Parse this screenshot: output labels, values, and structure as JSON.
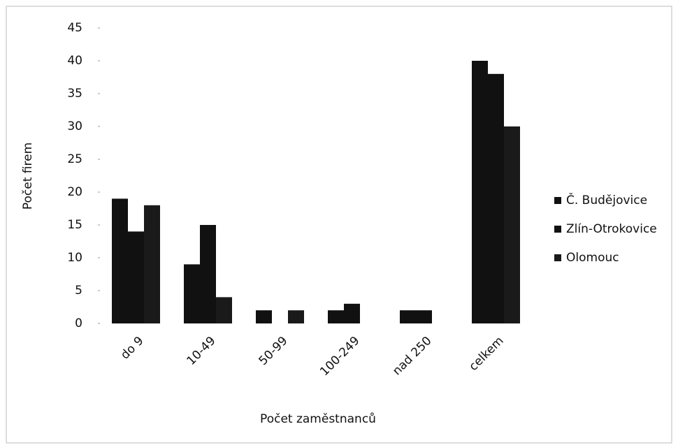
{
  "chart_data": {
    "type": "bar",
    "categories": [
      "do 9",
      "10-49",
      "50-99",
      "100-249",
      "nad 250",
      "celkem"
    ],
    "series": [
      {
        "name": "Č. Budějovice",
        "color": "#111111",
        "values": [
          19,
          9,
          2,
          2,
          2,
          40
        ]
      },
      {
        "name": "Zlín-Otrokovice",
        "color": "#111111",
        "values": [
          14,
          15,
          0,
          3,
          2,
          38
        ]
      },
      {
        "name": "Olomouc",
        "color": "#1a1a1a",
        "values": [
          18,
          4,
          2,
          0,
          0,
          30
        ]
      }
    ],
    "xlabel": "Počet zaměstnanců",
    "ylabel": "Počet firem",
    "ylim": [
      0,
      45
    ],
    "yticks": [
      0,
      5,
      10,
      15,
      20,
      25,
      30,
      35,
      40,
      45
    ],
    "grid": false,
    "legend": "right"
  }
}
